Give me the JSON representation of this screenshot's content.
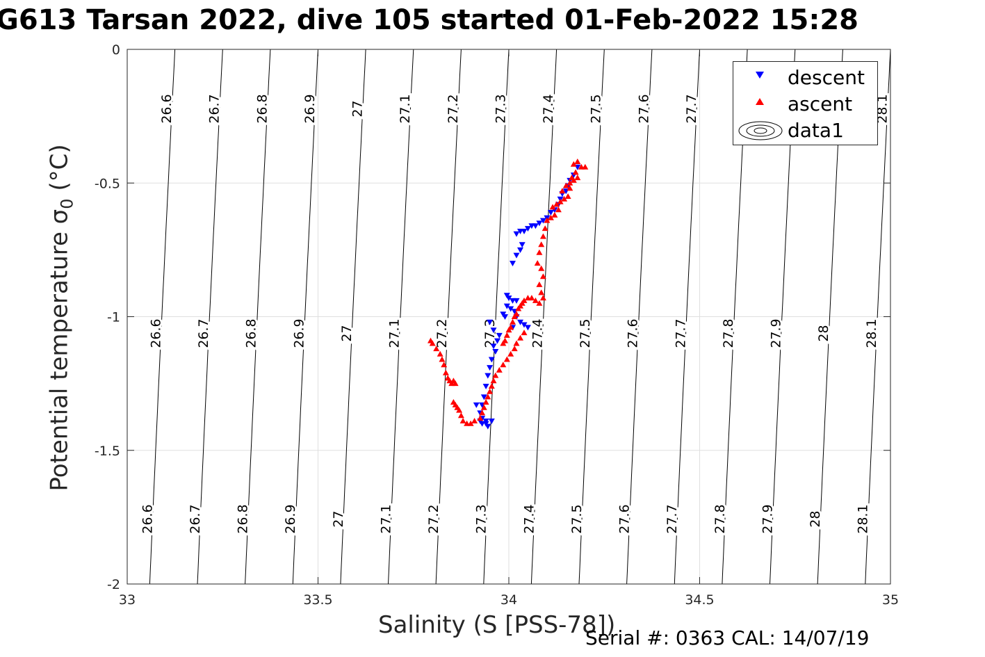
{
  "title": "G613 Tarsan 2022, dive 105 started 01-Feb-2022 15:28",
  "footer": "Serial #: 0363  CAL: 14/07/19",
  "chart_data": {
    "type": "scatter",
    "xlabel": "Salinity (S [PSS-78])",
    "ylabel": "Potential temperature σ",
    "ylabel_sub": "0",
    "ylabel_unit": "(°C)",
    "xlim": [
      33,
      35
    ],
    "ylim": [
      -2,
      0
    ],
    "xticks": [
      "33",
      "33.5",
      "34",
      "34.5",
      "35"
    ],
    "yticks": [
      "0",
      "-0.5",
      "-1",
      "-1.5",
      "-2"
    ],
    "grid": true,
    "legend_position": "top-right",
    "legend": [
      "descent",
      "ascent",
      "data1"
    ],
    "contour_levels": [
      "26.6",
      "26.7",
      "26.8",
      "26.9",
      "27",
      "27.1",
      "27.2",
      "27.3",
      "27.4",
      "27.5",
      "27.6",
      "27.7",
      "27.8",
      "27.9",
      "28",
      "28.1"
    ],
    "colors": {
      "descent": "#0000ff",
      "ascent": "#ff0000",
      "axis": "#262626",
      "grid": "#dfdfdf",
      "contour": "#000000"
    },
    "series": [
      {
        "name": "descent",
        "marker": "triangle-down",
        "points": [
          [
            34.18,
            -0.44
          ],
          [
            34.17,
            -0.47
          ],
          [
            34.16,
            -0.49
          ],
          [
            34.155,
            -0.51
          ],
          [
            34.15,
            -0.53
          ],
          [
            34.14,
            -0.54
          ],
          [
            34.135,
            -0.56
          ],
          [
            34.13,
            -0.58
          ],
          [
            34.12,
            -0.6
          ],
          [
            34.11,
            -0.61
          ],
          [
            34.1,
            -0.63
          ],
          [
            34.09,
            -0.64
          ],
          [
            34.08,
            -0.65
          ],
          [
            34.07,
            -0.66
          ],
          [
            34.06,
            -0.66
          ],
          [
            34.05,
            -0.67
          ],
          [
            34.04,
            -0.68
          ],
          [
            34.03,
            -0.68
          ],
          [
            34.02,
            -0.69
          ],
          [
            34.035,
            -0.73
          ],
          [
            34.03,
            -0.75
          ],
          [
            34.02,
            -0.77
          ],
          [
            34.01,
            -0.8
          ],
          [
            33.995,
            -0.92
          ],
          [
            34.0,
            -0.93
          ],
          [
            34.01,
            -0.94
          ],
          [
            34.02,
            -0.94
          ],
          [
            33.995,
            -0.96
          ],
          [
            34.005,
            -0.97
          ],
          [
            34.015,
            -0.98
          ],
          [
            33.985,
            -0.99
          ],
          [
            33.99,
            -1.0
          ],
          [
            34.02,
            -1.0
          ],
          [
            34.03,
            -1.02
          ],
          [
            34.04,
            -1.03
          ],
          [
            34.05,
            -1.04
          ],
          [
            34.01,
            -1.04
          ],
          [
            33.95,
            -1.02
          ],
          [
            33.96,
            -1.05
          ],
          [
            33.975,
            -1.07
          ],
          [
            33.97,
            -1.09
          ],
          [
            33.96,
            -1.11
          ],
          [
            33.965,
            -1.13
          ],
          [
            33.955,
            -1.16
          ],
          [
            33.95,
            -1.19
          ],
          [
            33.945,
            -1.22
          ],
          [
            33.94,
            -1.26
          ],
          [
            33.935,
            -1.3
          ],
          [
            33.93,
            -1.33
          ],
          [
            33.925,
            -1.36
          ],
          [
            33.93,
            -1.38
          ],
          [
            33.94,
            -1.39
          ],
          [
            33.955,
            -1.39
          ],
          [
            33.94,
            -1.4
          ],
          [
            33.93,
            -1.4
          ],
          [
            33.945,
            -1.41
          ],
          [
            33.925,
            -1.39
          ],
          [
            33.915,
            -1.33
          ]
        ]
      },
      {
        "name": "ascent",
        "marker": "triangle-up",
        "points": [
          [
            34.18,
            -0.42
          ],
          [
            34.19,
            -0.44
          ],
          [
            34.2,
            -0.44
          ],
          [
            34.17,
            -0.43
          ],
          [
            34.175,
            -0.46
          ],
          [
            34.165,
            -0.48
          ],
          [
            34.18,
            -0.48
          ],
          [
            34.16,
            -0.5
          ],
          [
            34.17,
            -0.49
          ],
          [
            34.15,
            -0.51
          ],
          [
            34.16,
            -0.52
          ],
          [
            34.14,
            -0.53
          ],
          [
            34.155,
            -0.55
          ],
          [
            34.145,
            -0.56
          ],
          [
            34.135,
            -0.57
          ],
          [
            34.125,
            -0.58
          ],
          [
            34.115,
            -0.59
          ],
          [
            34.13,
            -0.6
          ],
          [
            34.12,
            -0.62
          ],
          [
            34.11,
            -0.63
          ],
          [
            34.1,
            -0.64
          ],
          [
            34.095,
            -0.67
          ],
          [
            34.09,
            -0.7
          ],
          [
            34.085,
            -0.73
          ],
          [
            34.08,
            -0.76
          ],
          [
            34.075,
            -0.8
          ],
          [
            34.085,
            -0.82
          ],
          [
            34.09,
            -0.85
          ],
          [
            34.08,
            -0.88
          ],
          [
            34.085,
            -0.91
          ],
          [
            34.09,
            -0.93
          ],
          [
            34.08,
            -0.95
          ],
          [
            34.07,
            -0.94
          ],
          [
            34.06,
            -0.93
          ],
          [
            34.05,
            -0.93
          ],
          [
            34.04,
            -0.94
          ],
          [
            34.035,
            -0.95
          ],
          [
            34.03,
            -0.96
          ],
          [
            34.025,
            -0.97
          ],
          [
            34.02,
            -0.99
          ],
          [
            34.015,
            -1.0
          ],
          [
            34.01,
            -1.02
          ],
          [
            34.005,
            -1.04
          ],
          [
            34.0,
            -1.05
          ],
          [
            33.995,
            -1.07
          ],
          [
            33.99,
            -1.09
          ],
          [
            33.985,
            -1.1
          ],
          [
            34.03,
            -1.08
          ],
          [
            34.04,
            -1.06
          ],
          [
            34.02,
            -1.1
          ],
          [
            34.015,
            -1.12
          ],
          [
            34.005,
            -1.14
          ],
          [
            33.995,
            -1.16
          ],
          [
            33.985,
            -1.18
          ],
          [
            33.975,
            -1.2
          ],
          [
            33.965,
            -1.22
          ],
          [
            33.96,
            -1.24
          ],
          [
            33.955,
            -1.26
          ],
          [
            33.95,
            -1.28
          ],
          [
            33.945,
            -1.3
          ],
          [
            33.94,
            -1.32
          ],
          [
            33.935,
            -1.34
          ],
          [
            33.93,
            -1.36
          ],
          [
            33.925,
            -1.38
          ],
          [
            33.91,
            -1.39
          ],
          [
            33.9,
            -1.4
          ],
          [
            33.89,
            -1.4
          ],
          [
            33.88,
            -1.39
          ],
          [
            33.875,
            -1.37
          ],
          [
            33.87,
            -1.35
          ],
          [
            33.865,
            -1.34
          ],
          [
            33.86,
            -1.33
          ],
          [
            33.855,
            -1.32
          ],
          [
            33.86,
            -1.25
          ],
          [
            33.855,
            -1.24
          ],
          [
            33.85,
            -1.25
          ],
          [
            33.845,
            -1.24
          ],
          [
            33.84,
            -1.23
          ],
          [
            33.835,
            -1.21
          ],
          [
            33.83,
            -1.18
          ],
          [
            33.825,
            -1.16
          ],
          [
            33.82,
            -1.14
          ],
          [
            33.81,
            -1.12
          ],
          [
            33.8,
            -1.1
          ],
          [
            33.795,
            -1.09
          ]
        ]
      }
    ]
  }
}
